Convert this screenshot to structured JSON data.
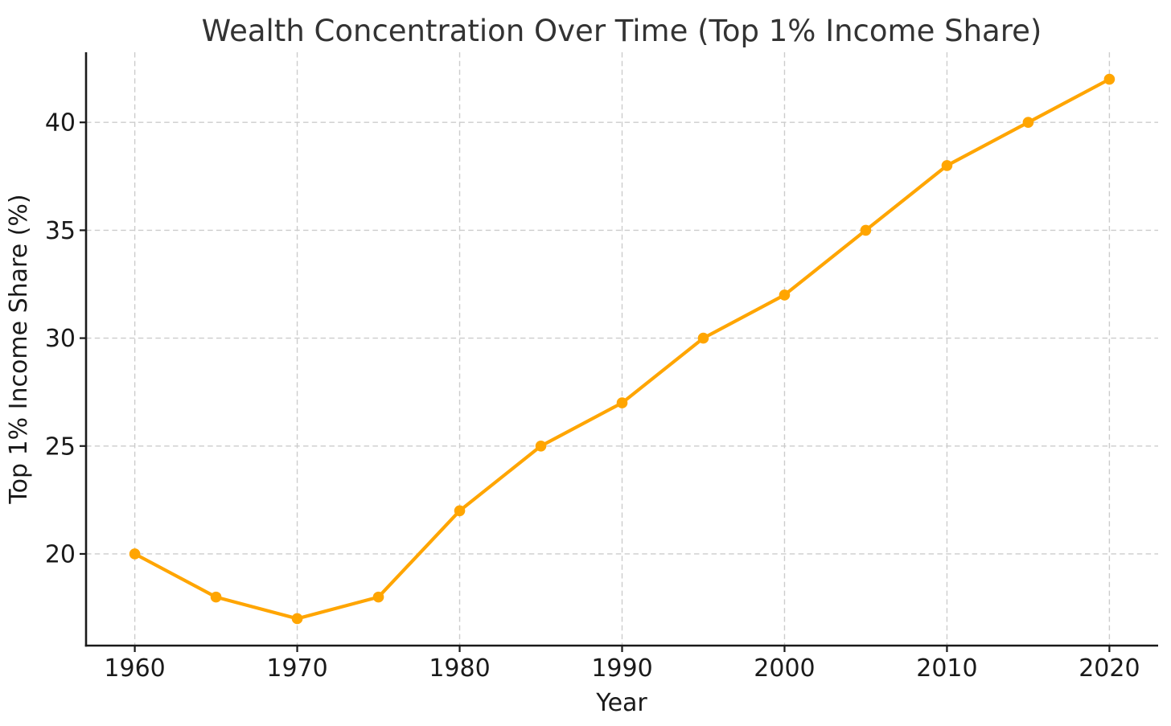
{
  "page": {
    "background": "#ffffff"
  },
  "chart_data": {
    "type": "line",
    "title": "Wealth Concentration Over Time (Top 1% Income Share)",
    "xlabel": "Year",
    "ylabel": "Top 1% Income Share (%)",
    "x": [
      1960,
      1965,
      1970,
      1975,
      1980,
      1985,
      1990,
      1995,
      2000,
      2005,
      2010,
      2015,
      2020
    ],
    "series": [
      {
        "name": "Top 1% Income Share",
        "values": [
          20,
          18,
          17,
          18,
          22,
          25,
          27,
          30,
          32,
          35,
          38,
          40,
          42
        ],
        "color": "#FFA500",
        "marker": "circle"
      }
    ],
    "xticks": [
      1960,
      1970,
      1980,
      1990,
      2000,
      2010,
      2020
    ],
    "yticks": [
      20,
      25,
      30,
      35,
      40
    ],
    "xlim": [
      1957,
      2023
    ],
    "ylim": [
      15.75,
      43.25
    ],
    "grid": true,
    "grid_color": "#cccccc",
    "axis_color": "#1a1a1a",
    "tick_text_color": "#1a1a1a",
    "title_color": "#333333",
    "legend": "none"
  }
}
